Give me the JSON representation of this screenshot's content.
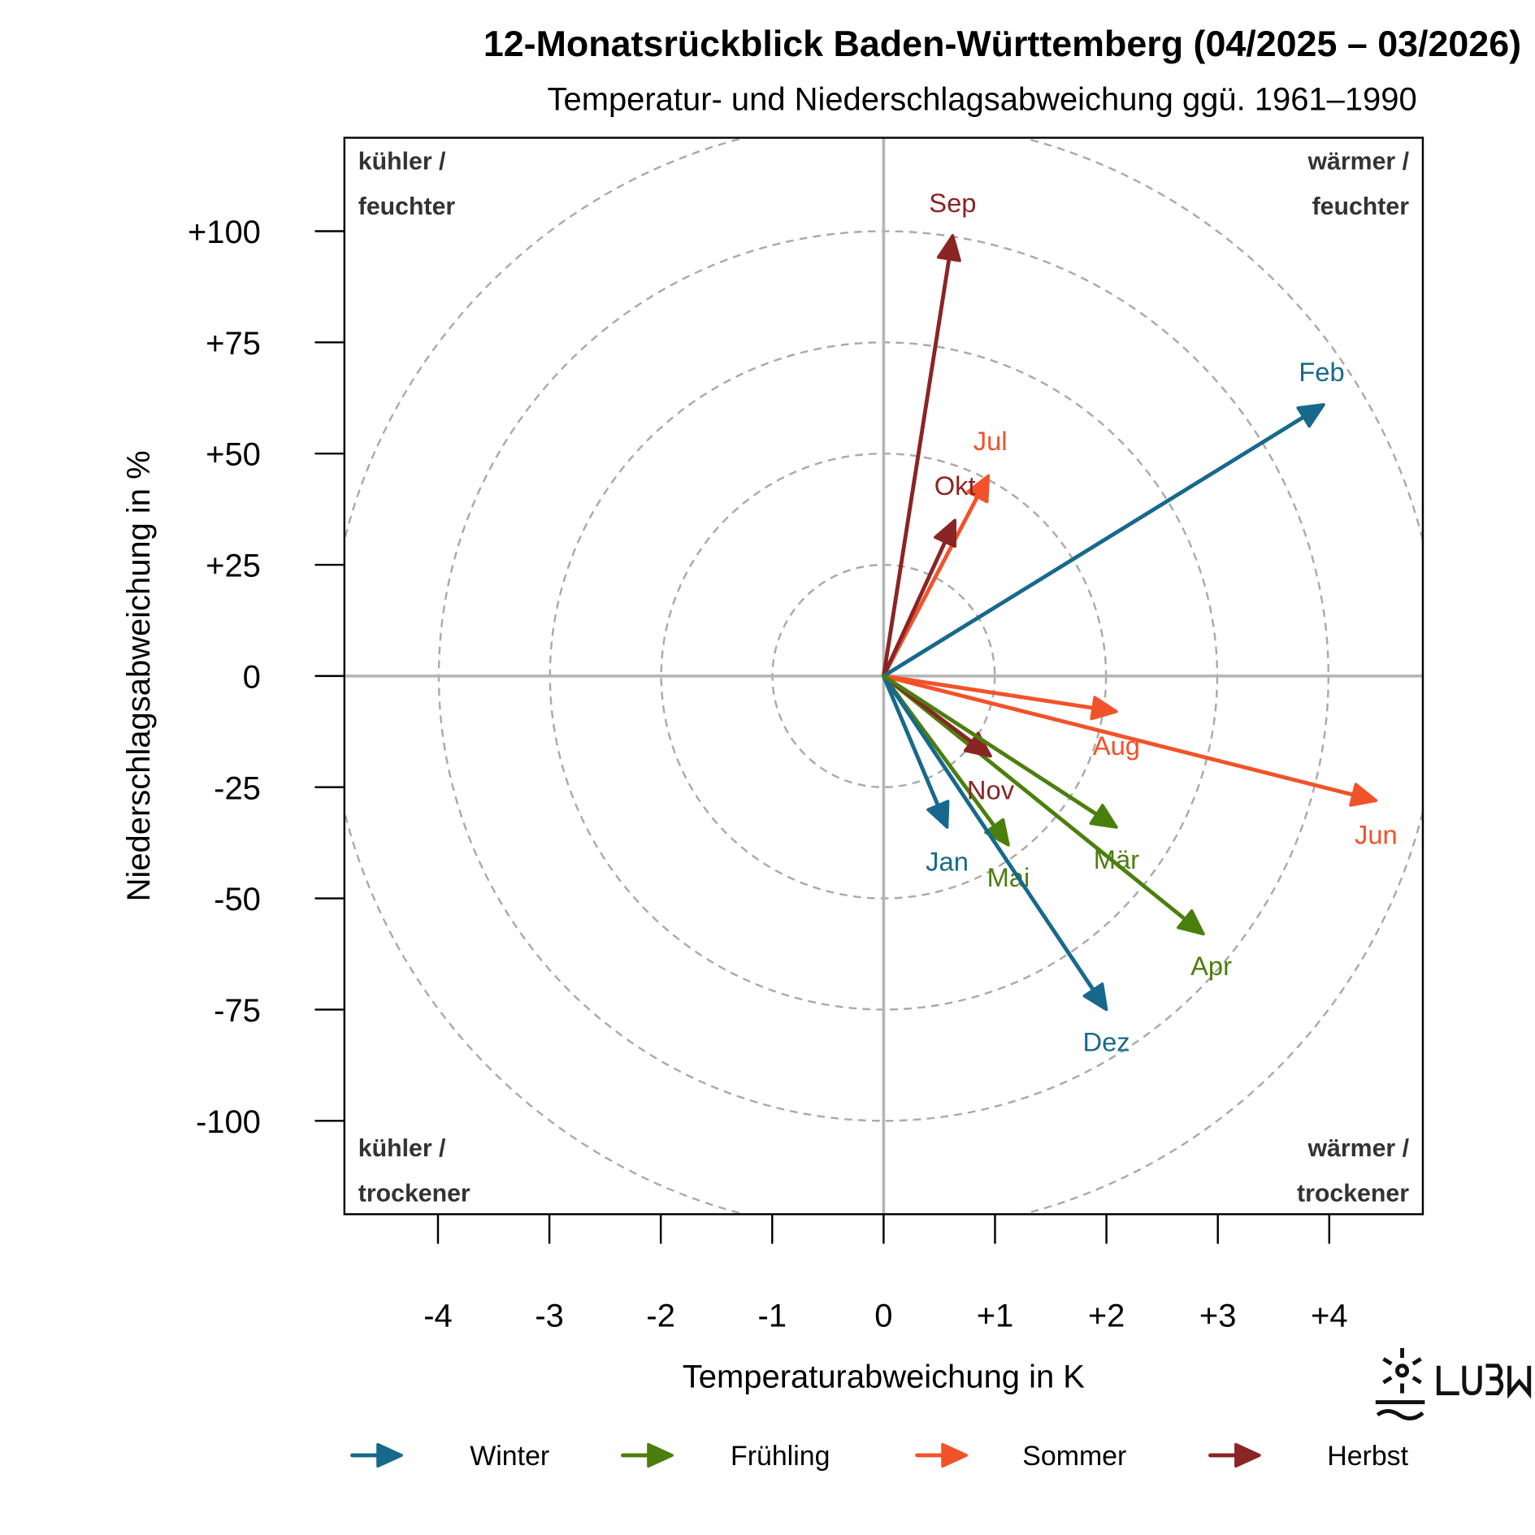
{
  "chart_data": {
    "type": "vector",
    "title": "12-Monatsrückblick Baden-Württemberg (04/2025 – 03/2026)",
    "subtitle": "Temperatur- und Niederschlagsabweichung ggü. 1961–1990",
    "xlabel": "Temperaturabweichung in K",
    "ylabel": "Niederschlagsabweichung in %",
    "xlim": [
      -4.84,
      4.84
    ],
    "ylim": [
      -121,
      121
    ],
    "x_ticks": [
      -4,
      -3,
      -2,
      -1,
      0,
      1,
      2,
      3,
      4
    ],
    "x_tick_labels": [
      "-4",
      "-3",
      "-2",
      "-1",
      "0",
      "+1",
      "+2",
      "+3",
      "+4"
    ],
    "y_ticks": [
      100,
      75,
      50,
      25,
      0,
      -25,
      -50,
      -75,
      -100
    ],
    "y_tick_labels": [
      "+100",
      "+75",
      "+50",
      "+25",
      "0",
      "-25",
      "-50",
      "-75",
      "-100"
    ],
    "circle_radii_percent": [
      25,
      50,
      75,
      100,
      125
    ],
    "quadrant_labels": {
      "top_left": [
        "kühler /",
        "feuchter"
      ],
      "top_right": [
        "wärmer /",
        "feuchter"
      ],
      "bottom_left": [
        "kühler /",
        "trockener"
      ],
      "bottom_right": [
        "wärmer /",
        "trockener"
      ]
    },
    "legend_position": "bottom",
    "series": [
      {
        "name": "Winter",
        "color": "#17698c"
      },
      {
        "name": "Frühling",
        "color": "#4b7f0d"
      },
      {
        "name": "Sommer",
        "color": "#f2522a"
      },
      {
        "name": "Herbst",
        "color": "#8b2424"
      }
    ],
    "points": [
      {
        "label": "Apr",
        "season": "Frühling",
        "temp": 2.87,
        "precip": -58
      },
      {
        "label": "Mai",
        "season": "Frühling",
        "temp": 1.12,
        "precip": -38
      },
      {
        "label": "Jun",
        "season": "Sommer",
        "temp": 4.42,
        "precip": -28
      },
      {
        "label": "Jul",
        "season": "Sommer",
        "temp": 0.94,
        "precip": 45
      },
      {
        "label": "Aug",
        "season": "Sommer",
        "temp": 2.09,
        "precip": -8
      },
      {
        "label": "Sep",
        "season": "Herbst",
        "temp": 0.62,
        "precip": 99
      },
      {
        "label": "Okt",
        "season": "Herbst",
        "temp": 0.64,
        "precip": 35
      },
      {
        "label": "Nov",
        "season": "Herbst",
        "temp": 0.96,
        "precip": -18
      },
      {
        "label": "Dez",
        "season": "Winter",
        "temp": 2.0,
        "precip": -75
      },
      {
        "label": "Jan",
        "season": "Winter",
        "temp": 0.57,
        "precip": -34
      },
      {
        "label": "Feb",
        "season": "Winter",
        "temp": 3.95,
        "precip": 61
      },
      {
        "label": "Mär",
        "season": "Frühling",
        "temp": 2.09,
        "precip": -34
      }
    ]
  },
  "logo": {
    "text": "LUBW"
  }
}
